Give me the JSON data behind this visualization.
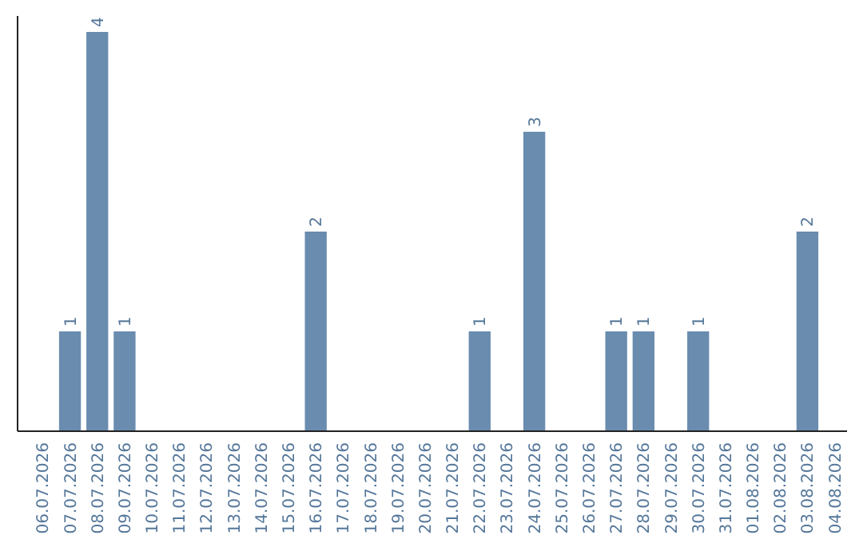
{
  "chart_data": {
    "type": "bar",
    "categories": [
      "06.07.2026",
      "07.07.2026",
      "08.07.2026",
      "09.07.2026",
      "10.07.2026",
      "11.07.2026",
      "12.07.2026",
      "13.07.2026",
      "14.07.2026",
      "15.07.2026",
      "16.07.2026",
      "17.07.2026",
      "18.07.2026",
      "19.07.2026",
      "20.07.2026",
      "21.07.2026",
      "22.07.2026",
      "23.07.2026",
      "24.07.2026",
      "25.07.2026",
      "26.07.2026",
      "27.07.2026",
      "28.07.2026",
      "29.07.2026",
      "30.07.2026",
      "31.07.2026",
      "01.08.2026",
      "02.08.2026",
      "03.08.2026",
      "04.08.2026"
    ],
    "values": [
      0,
      1,
      4,
      1,
      0,
      0,
      0,
      0,
      0,
      0,
      2,
      0,
      0,
      0,
      0,
      0,
      1,
      0,
      3,
      0,
      0,
      1,
      1,
      0,
      1,
      0,
      0,
      0,
      2,
      0
    ],
    "value_labels": [
      null,
      "1",
      "4",
      "1",
      null,
      null,
      null,
      null,
      null,
      null,
      "2",
      null,
      null,
      null,
      null,
      null,
      "1",
      null,
      "3",
      null,
      null,
      "1",
      "1",
      null,
      "1",
      null,
      null,
      null,
      "2",
      null
    ],
    "color": "#6a8caf",
    "tick_labels": "x"
  }
}
